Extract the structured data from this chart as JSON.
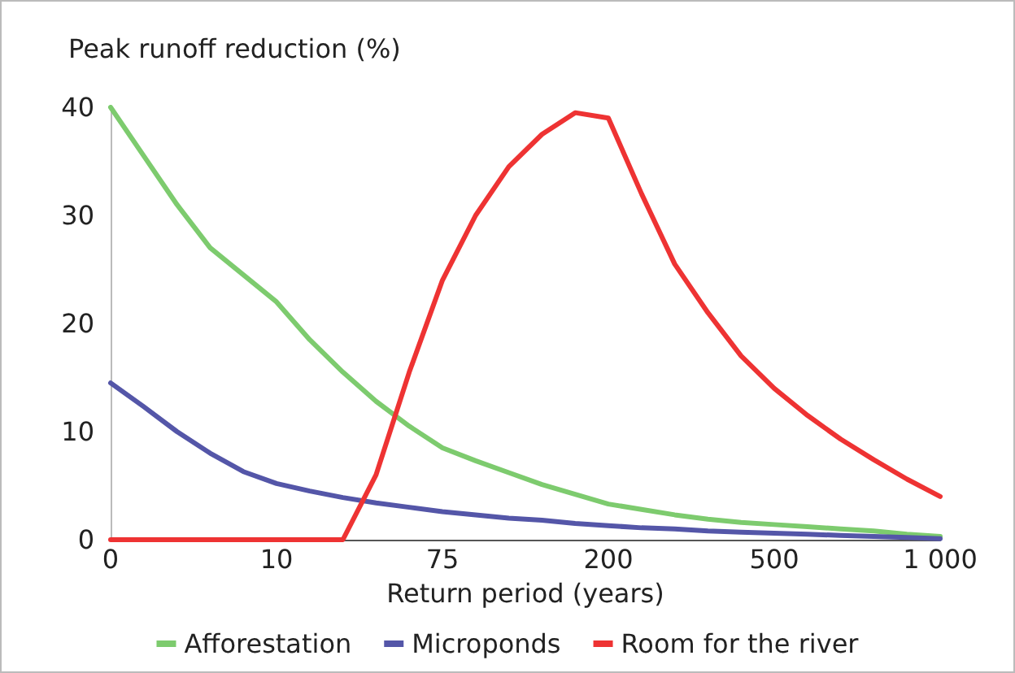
{
  "chart_data": {
    "type": "line",
    "ylabel": "Peak runoff reduction (%)",
    "xlabel": "Return period (years)",
    "categories": [
      "0",
      null,
      null,
      null,
      null,
      "10",
      null,
      null,
      null,
      null,
      "75",
      null,
      null,
      null,
      null,
      "200",
      null,
      null,
      null,
      null,
      "500",
      null,
      null,
      null,
      null,
      "1 000"
    ],
    "ylim": [
      0,
      40
    ],
    "yticks": [
      0,
      10,
      20,
      30,
      40
    ],
    "grid": false,
    "legend": "bottom",
    "marker": "none",
    "line_style": "solid",
    "series": [
      {
        "name": "Afforestation",
        "color": "#7dcb6e",
        "values": [
          40,
          35.5,
          31,
          27,
          24.5,
          22,
          18.5,
          15.5,
          12.8,
          10.5,
          8.5,
          7.3,
          6.2,
          5.1,
          4.2,
          3.3,
          2.8,
          2.3,
          1.9,
          1.6,
          1.4,
          1.2,
          1.0,
          0.8,
          0.5,
          0.3
        ]
      },
      {
        "name": "Microponds",
        "color": "#5456a8",
        "values": [
          14.5,
          12.3,
          10,
          8,
          6.3,
          5.2,
          4.5,
          3.9,
          3.4,
          3.0,
          2.6,
          2.3,
          2.0,
          1.8,
          1.5,
          1.3,
          1.1,
          1.0,
          0.8,
          0.7,
          0.6,
          0.5,
          0.4,
          0.3,
          0.2,
          0.1
        ]
      },
      {
        "name": "Room for the river",
        "color": "#ee3333",
        "values": [
          0,
          0,
          0,
          0,
          0,
          0,
          0,
          0,
          6,
          15.5,
          24,
          30,
          34.5,
          37.5,
          39.5,
          39,
          32,
          25.5,
          21,
          17,
          14,
          11.5,
          9.3,
          7.4,
          5.6,
          4
        ]
      }
    ]
  }
}
